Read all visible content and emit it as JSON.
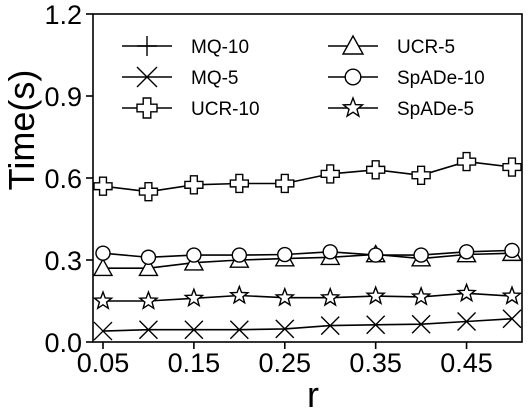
{
  "chart_data": {
    "type": "line",
    "xlabel": "r",
    "ylabel": "Time(s)",
    "x": [
      0.05,
      0.1,
      0.15,
      0.2,
      0.25,
      0.3,
      0.35,
      0.4,
      0.45,
      0.5
    ],
    "xlim": [
      0.05,
      0.5
    ],
    "ylim": [
      0.0,
      1.2
    ],
    "xticks": [
      0.05,
      0.15,
      0.25,
      0.35,
      0.45
    ],
    "xtick_labels": [
      "0.05",
      "0.15",
      "0.25",
      "0.35",
      "0.45"
    ],
    "yticks": [
      0.0,
      0.3,
      0.6,
      0.9,
      1.2
    ],
    "ytick_labels": [
      "0.0",
      "0.3",
      "0.6",
      "0.9",
      "1.2"
    ],
    "grid": false,
    "legend_position": "top",
    "series": [
      {
        "name": "MQ-10",
        "marker": "plus",
        "values": [
          0.0,
          0.0,
          0.0,
          0.0,
          0.0,
          0.0,
          0.0,
          0.0,
          0.0,
          0.0
        ],
        "hidden_in_plot": true
      },
      {
        "name": "MQ-5",
        "marker": "x",
        "values": [
          0.04,
          0.045,
          0.045,
          0.045,
          0.048,
          0.06,
          0.063,
          0.065,
          0.075,
          0.085
        ]
      },
      {
        "name": "UCR-10",
        "marker": "cross",
        "values": [
          0.57,
          0.55,
          0.575,
          0.58,
          0.58,
          0.615,
          0.63,
          0.61,
          0.66,
          0.64
        ]
      },
      {
        "name": "UCR-5",
        "marker": "triangle",
        "values": [
          0.27,
          0.27,
          0.29,
          0.3,
          0.305,
          0.31,
          0.32,
          0.305,
          0.32,
          0.325
        ]
      },
      {
        "name": "SpADe-10",
        "marker": "circle",
        "values": [
          0.325,
          0.31,
          0.318,
          0.318,
          0.32,
          0.33,
          0.318,
          0.318,
          0.33,
          0.335
        ]
      },
      {
        "name": "SpADe-5",
        "marker": "star",
        "values": [
          0.15,
          0.15,
          0.16,
          0.17,
          0.162,
          0.162,
          0.168,
          0.165,
          0.178,
          0.168
        ]
      }
    ]
  }
}
